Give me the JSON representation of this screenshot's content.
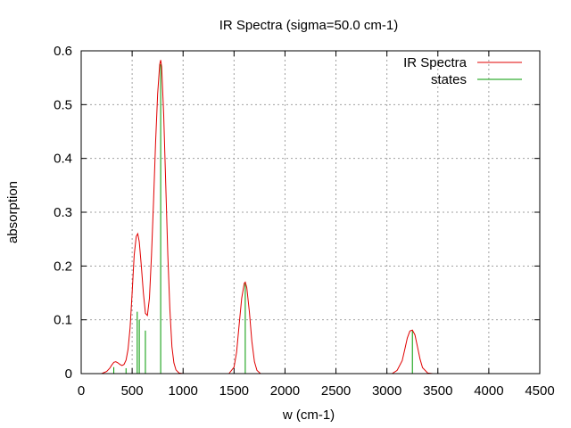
{
  "chart_data": {
    "type": "line",
    "title": "IR Spectra (sigma=50.0 cm-1)",
    "xlabel": "w (cm-1)",
    "ylabel": "absorption",
    "xlim": [
      0,
      4500
    ],
    "ylim": [
      0,
      0.6
    ],
    "x_ticks": [
      0,
      500,
      1000,
      1500,
      2000,
      2500,
      3000,
      3500,
      4000,
      4500
    ],
    "y_ticks": [
      0,
      0.1,
      0.2,
      0.3,
      0.4,
      0.5,
      0.6
    ],
    "grid": true,
    "legend_position": "top-right",
    "colors": {
      "spectrum": "#e00000",
      "states": "#009900"
    },
    "series": [
      {
        "name": "IR Spectra",
        "kind": "line",
        "x": [
          200,
          250,
          280,
          300,
          320,
          340,
          360,
          380,
          400,
          420,
          440,
          460,
          480,
          500,
          520,
          540,
          555,
          570,
          590,
          610,
          630,
          650,
          670,
          690,
          710,
          730,
          750,
          770,
          780,
          790,
          810,
          830,
          850,
          870,
          890,
          910,
          930,
          960,
          1000,
          1450,
          1500,
          1525,
          1550,
          1575,
          1600,
          1610,
          1625,
          1650,
          1675,
          1700,
          1725,
          1760,
          3050,
          3100,
          3150,
          3175,
          3200,
          3225,
          3250,
          3275,
          3300,
          3325,
          3350,
          3400,
          3450
        ],
        "y": [
          0.0,
          0.004,
          0.01,
          0.016,
          0.021,
          0.022,
          0.02,
          0.017,
          0.015,
          0.017,
          0.025,
          0.045,
          0.085,
          0.15,
          0.22,
          0.255,
          0.26,
          0.245,
          0.2,
          0.15,
          0.112,
          0.108,
          0.14,
          0.22,
          0.32,
          0.43,
          0.52,
          0.575,
          0.583,
          0.57,
          0.48,
          0.35,
          0.22,
          0.12,
          0.05,
          0.02,
          0.007,
          0.001,
          0.0,
          0.0,
          0.012,
          0.04,
          0.09,
          0.14,
          0.168,
          0.17,
          0.16,
          0.115,
          0.06,
          0.022,
          0.006,
          0.0,
          0.0,
          0.006,
          0.024,
          0.045,
          0.066,
          0.079,
          0.081,
          0.072,
          0.05,
          0.027,
          0.011,
          0.001,
          0.0
        ]
      },
      {
        "name": "states",
        "kind": "impulse",
        "x": [
          320,
          440,
          550,
          570,
          630,
          780,
          1610,
          3250
        ],
        "y": [
          0.012,
          0.01,
          0.115,
          0.1,
          0.08,
          0.575,
          0.168,
          0.08
        ]
      }
    ]
  }
}
